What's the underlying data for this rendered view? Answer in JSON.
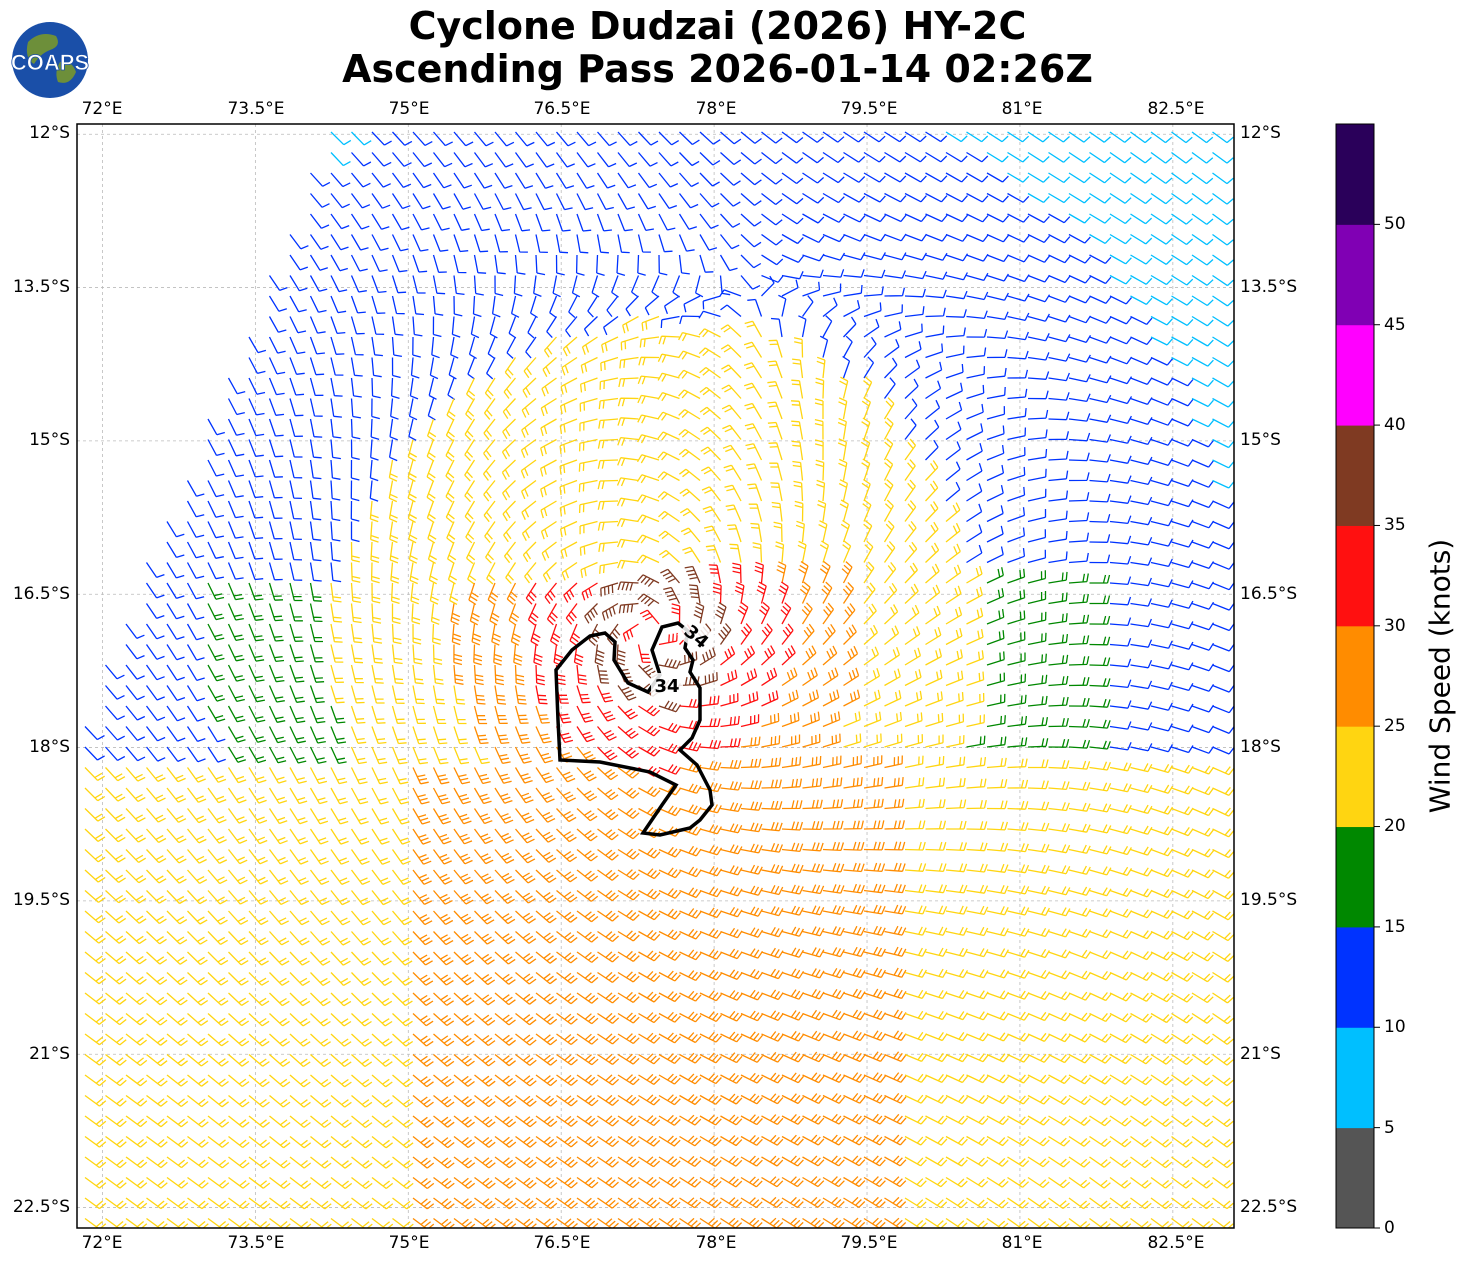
{
  "title": {
    "line1": "Cyclone Dudzai (2026) HY-2C",
    "line2": "Ascending Pass 2026-01-14 02:26Z"
  },
  "logo": {
    "text": "COAPS",
    "colors": {
      "ocean": "#1a4fa8",
      "land": "#6d8f3a",
      "text": "#ffffff"
    }
  },
  "map": {
    "lon_range": [
      71.75,
      83.1
    ],
    "lat_range": [
      -22.7,
      -11.9
    ],
    "lon_ticks": [
      "72°E",
      "73.5°E",
      "75°E",
      "76.5°E",
      "78°E",
      "79.5°E",
      "81°E",
      "82.5°E"
    ],
    "lat_ticks": [
      "12°S",
      "13.5°S",
      "15°S",
      "16.5°S",
      "18°S",
      "19.5°S",
      "21°S",
      "22.5°S"
    ],
    "grid": true,
    "contour_label": "34",
    "storm_center": {
      "lon": 77.4,
      "lat": -16.9
    }
  },
  "colorbar": {
    "label": "Wind Speed (knots)",
    "tick_labels": [
      "0",
      "5",
      "10",
      "15",
      "20",
      "25",
      "30",
      "35",
      "40",
      "45",
      "50"
    ],
    "colors": [
      "#555555",
      "#00bfff",
      "#0033ff",
      "#008800",
      "#ffd511",
      "#ff8c00",
      "#ff1010",
      "#7f3a22",
      "#ff00ff",
      "#8000b4",
      "#2a005a"
    ]
  }
}
